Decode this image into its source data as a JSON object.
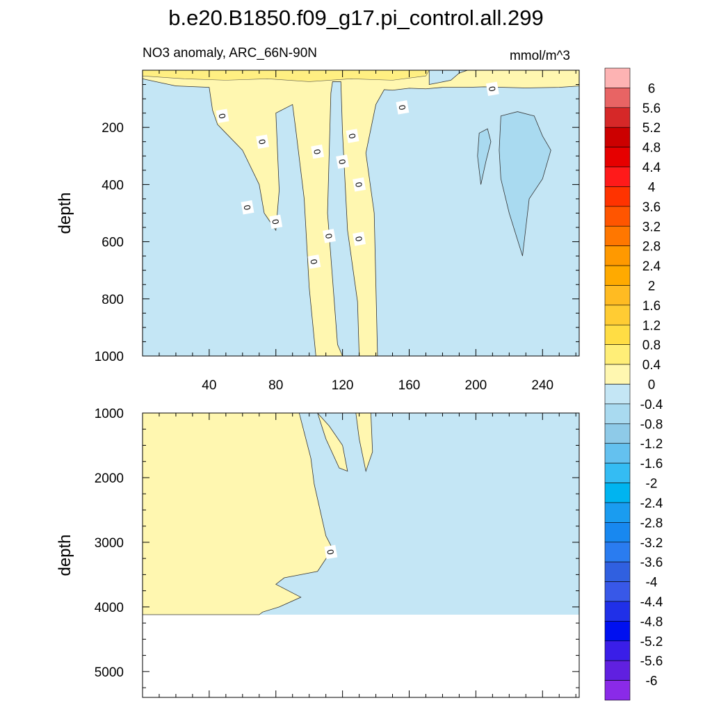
{
  "title": "b.e20.B1850.f09_g17.pi_control.all.299",
  "chart_data": {
    "type": "contour",
    "subtitle": "NO3 anomaly, ARC_66N-90N",
    "units": "mmol/m^3",
    "x_range": [
      0,
      262
    ],
    "x_ticks": [
      40,
      80,
      120,
      160,
      200,
      240
    ],
    "contour_line_label": "0",
    "panels": [
      {
        "name": "upper",
        "ylabel": "depth",
        "y_range": [
          0,
          1000
        ],
        "y_ticks": [
          200,
          400,
          600,
          800,
          1000
        ],
        "positive_region": [
          [
            0,
            0
          ],
          [
            172,
            0
          ],
          [
            172,
            50
          ],
          [
            185,
            35
          ],
          [
            190,
            10
          ],
          [
            195,
            0
          ],
          [
            262,
            0
          ],
          [
            262,
            55
          ],
          [
            250,
            60
          ],
          [
            230,
            62
          ],
          [
            205,
            58
          ],
          [
            195,
            60
          ],
          [
            180,
            60
          ],
          [
            170,
            65
          ],
          [
            160,
            63
          ],
          [
            150,
            70
          ],
          [
            145,
            68
          ],
          [
            140,
            120
          ],
          [
            134,
            290
          ],
          [
            139,
            500
          ],
          [
            141,
            1000
          ],
          [
            130,
            1000
          ],
          [
            129,
            810
          ],
          [
            123,
            560
          ],
          [
            120,
            220
          ],
          [
            119,
            40
          ],
          [
            114,
            40
          ],
          [
            113,
            80
          ],
          [
            111,
            500
          ],
          [
            117,
            960
          ],
          [
            120,
            1000
          ],
          [
            104,
            1000
          ],
          [
            100,
            760
          ],
          [
            97,
            450
          ],
          [
            92,
            210
          ],
          [
            90,
            120
          ],
          [
            80,
            150
          ],
          [
            82,
            420
          ],
          [
            80,
            560
          ],
          [
            73,
            500
          ],
          [
            70,
            400
          ],
          [
            60,
            280
          ],
          [
            50,
            220
          ],
          [
            45,
            190
          ],
          [
            42,
            140
          ],
          [
            40,
            60
          ],
          [
            20,
            55
          ],
          [
            0,
            30
          ]
        ],
        "negative_patches": [
          [
            [
              215,
              160
            ],
            [
              225,
              145
            ],
            [
              235,
              160
            ],
            [
              240,
              230
            ],
            [
              245,
              280
            ],
            [
              240,
              380
            ],
            [
              232,
              450
            ],
            [
              228,
              650
            ],
            [
              220,
              500
            ],
            [
              215,
              380
            ],
            [
              214,
              280
            ]
          ],
          [
            [
              202,
              220
            ],
            [
              207,
              205
            ],
            [
              209,
              250
            ],
            [
              206,
              320
            ],
            [
              203,
              400
            ],
            [
              201,
              300
            ]
          ]
        ]
      },
      {
        "name": "lower",
        "ylabel": "depth",
        "y_range": [
          1000,
          5400
        ],
        "y_ticks": [
          1000,
          2000,
          3000,
          4000,
          5000
        ],
        "bottom_depth": 4120,
        "positive_region": [
          [
            0,
            1000
          ],
          [
            94,
            1000
          ],
          [
            101,
            1700
          ],
          [
            103,
            2100
          ],
          [
            110,
            2900
          ],
          [
            114,
            3100
          ],
          [
            105,
            3450
          ],
          [
            85,
            3550
          ],
          [
            80,
            3650
          ],
          [
            95,
            3850
          ],
          [
            82,
            4000
          ],
          [
            72,
            4080
          ],
          [
            70,
            4120
          ],
          [
            0,
            4120
          ]
        ],
        "negative_patches": [],
        "extra_positive": [
          [
            [
              105,
              1000
            ],
            [
              112,
              1200
            ],
            [
              120,
              1500
            ],
            [
              123,
              1900
            ],
            [
              118,
              1850
            ],
            [
              110,
              1400
            ]
          ],
          [
            [
              128,
              1000
            ],
            [
              137,
              1000
            ],
            [
              138,
              1600
            ],
            [
              134,
              1900
            ],
            [
              130,
              1400
            ]
          ]
        ]
      }
    ],
    "colorbar": {
      "labels": [
        "6",
        "5.6",
        "5.2",
        "4.8",
        "4.4",
        "4",
        "3.6",
        "3.2",
        "2.8",
        "2.4",
        "2",
        "1.6",
        "1.2",
        "0.8",
        "0.4",
        "0",
        "-0.4",
        "-0.8",
        "-1.2",
        "-1.6",
        "-2",
        "-2.4",
        "-2.8",
        "-3.2",
        "-3.6",
        "-4",
        "-4.4",
        "-4.8",
        "-5.2",
        "-5.6",
        "-6"
      ],
      "colors": [
        "#fdb3b3",
        "#e86464",
        "#d62828",
        "#cc0000",
        "#e60000",
        "#ff1a1a",
        "#ff3300",
        "#ff5500",
        "#ff7700",
        "#ff9900",
        "#ffaa00",
        "#ffbb22",
        "#ffcc33",
        "#ffdd44",
        "#ffee77",
        "#fff7b0",
        "#c4e6f5",
        "#a9daf0",
        "#8ecae8",
        "#64c1ef",
        "#34bcf3",
        "#00b4f0",
        "#1a9cf0",
        "#1888f0",
        "#2a7cf0",
        "#3060e0",
        "#3858e8",
        "#2030e8",
        "#0010f0",
        "#3a1ee8",
        "#6020e0",
        "#8a2ae8"
      ]
    },
    "colors": {
      "positive_fill": "#fff7b0",
      "negative_fill": "#c4e6f5",
      "negative_patch_fill": "#a9daf0",
      "near_surface_positive": "#ffee77"
    }
  }
}
